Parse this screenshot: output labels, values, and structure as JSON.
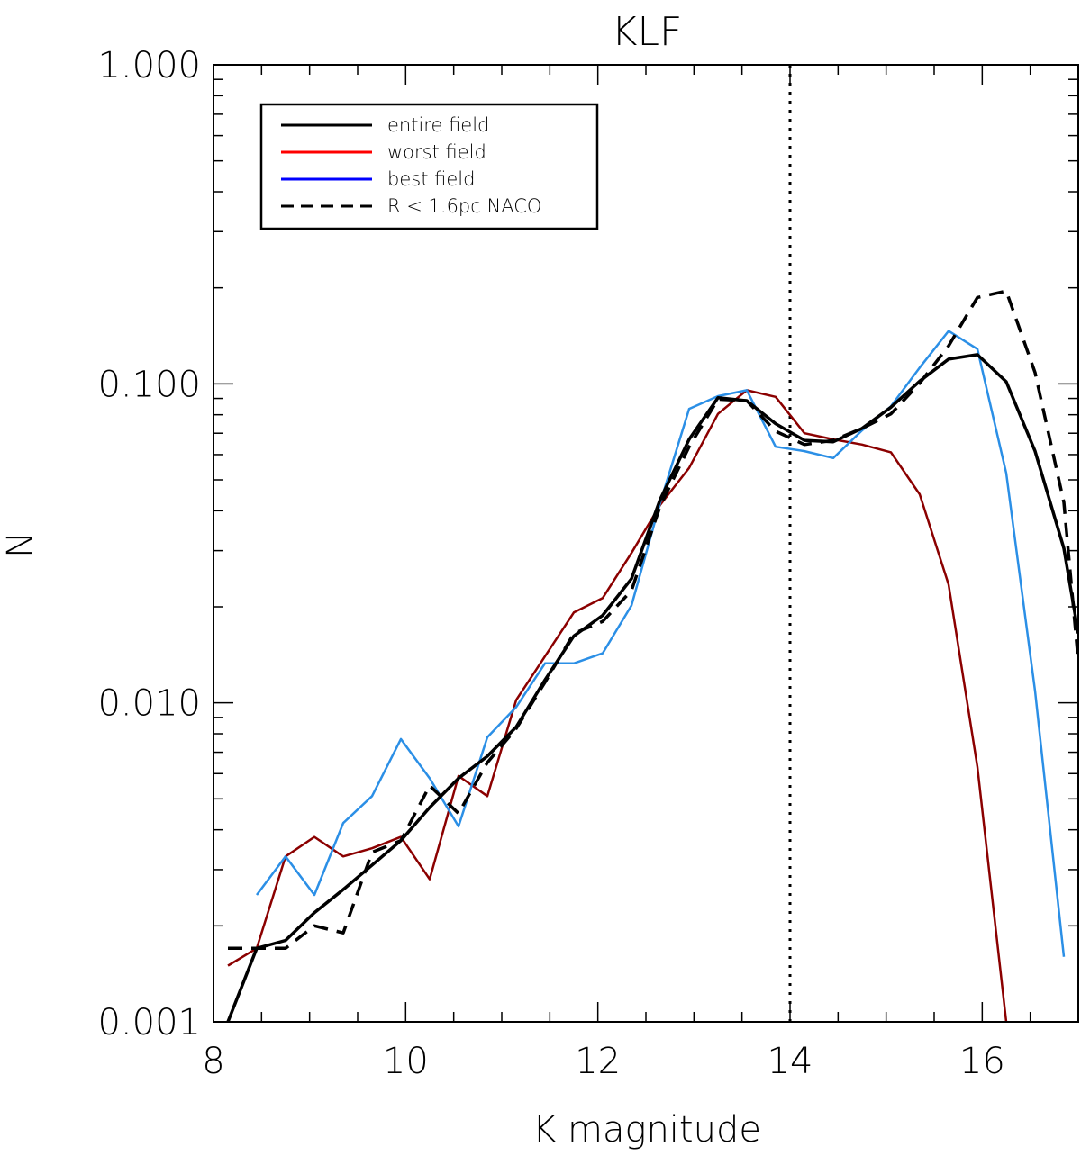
{
  "chart_data": {
    "type": "line",
    "title": "KLF",
    "xlabel": "K magnitude",
    "ylabel": "N",
    "xlim": [
      8,
      17
    ],
    "ylim": [
      0.001,
      1.0
    ],
    "yscale": "log",
    "x_ticks": [
      "8",
      "10",
      "12",
      "14",
      "16"
    ],
    "x_tick_values": [
      8,
      10,
      12,
      14,
      16
    ],
    "y_ticks": [
      "0.001",
      "0.010",
      "0.100",
      "1.000"
    ],
    "y_tick_values": [
      0.001,
      0.01,
      0.1,
      1.0
    ],
    "grid": false,
    "legend_position": "top-left",
    "reference_line": {
      "x": 14,
      "style": "dotted",
      "color": "#000000"
    },
    "series": [
      {
        "name": "entire field",
        "color": "#000000",
        "style": "solid",
        "legend_color": "#000000",
        "x": [
          8.15,
          8.45,
          8.75,
          9.05,
          9.35,
          9.65,
          9.95,
          10.25,
          10.55,
          10.85,
          11.15,
          11.45,
          11.75,
          12.05,
          12.35,
          12.65,
          12.95,
          13.25,
          13.55,
          13.85,
          14.15,
          14.45,
          14.75,
          15.05,
          15.35,
          15.65,
          15.95,
          16.25,
          16.55,
          16.85,
          17.0
        ],
        "y": [
          0.001,
          0.0017,
          0.0018,
          0.0022,
          0.0026,
          0.0031,
          0.0037,
          0.0047,
          0.0058,
          0.0068,
          0.0084,
          0.0118,
          0.0162,
          0.0188,
          0.0245,
          0.0435,
          0.067,
          0.0905,
          0.0885,
          0.075,
          0.0665,
          0.0658,
          0.0725,
          0.0845,
          0.102,
          0.1195,
          0.1235,
          0.1015,
          0.0615,
          0.0305,
          0.0165
        ]
      },
      {
        "name": "worst field",
        "color": "#8b0000",
        "style": "solid",
        "legend_color": "#ff0000",
        "x": [
          8.15,
          8.45,
          8.75,
          9.05,
          9.35,
          9.65,
          9.95,
          10.25,
          10.55,
          10.85,
          11.15,
          11.45,
          11.75,
          12.05,
          12.35,
          12.65,
          12.95,
          13.25,
          13.55,
          13.85,
          14.15,
          14.45,
          14.75,
          15.05,
          15.35,
          15.65,
          15.95,
          16.25
        ],
        "y": [
          0.0015,
          0.0017,
          0.0033,
          0.0038,
          0.0033,
          0.0035,
          0.0038,
          0.0028,
          0.0059,
          0.0051,
          0.0102,
          0.014,
          0.0192,
          0.0213,
          0.0295,
          0.0418,
          0.0545,
          0.0805,
          0.0955,
          0.091,
          0.07,
          0.067,
          0.0645,
          0.061,
          0.045,
          0.0235,
          0.0063,
          0.001
        ]
      },
      {
        "name": "best field",
        "color": "#2b8fe6",
        "style": "solid",
        "legend_color": "#0000ff",
        "x": [
          8.45,
          8.75,
          9.05,
          9.35,
          9.65,
          9.95,
          10.25,
          10.55,
          10.85,
          11.15,
          11.45,
          11.75,
          12.05,
          12.35,
          12.65,
          12.95,
          13.25,
          13.55,
          13.85,
          14.15,
          14.45,
          14.75,
          15.05,
          15.35,
          15.65,
          15.95,
          16.25,
          16.55,
          16.85
        ],
        "y": [
          0.0025,
          0.0033,
          0.0025,
          0.0042,
          0.0051,
          0.0077,
          0.0058,
          0.0041,
          0.0078,
          0.0097,
          0.0133,
          0.0133,
          0.0143,
          0.0202,
          0.0425,
          0.0835,
          0.0915,
          0.0955,
          0.0635,
          0.0615,
          0.0585,
          0.0715,
          0.085,
          0.1125,
          0.1465,
          0.1285,
          0.0525,
          0.0109,
          0.0016
        ]
      },
      {
        "name": "R < 1.6pc NACO",
        "color": "#000000",
        "style": "dashed",
        "legend_color": "#000000",
        "x": [
          8.15,
          8.45,
          8.75,
          9.05,
          9.35,
          9.65,
          9.95,
          10.25,
          10.55,
          10.85,
          11.15,
          11.45,
          11.75,
          12.05,
          12.35,
          12.65,
          12.95,
          13.25,
          13.55,
          13.85,
          14.15,
          14.45,
          14.75,
          15.05,
          15.35,
          15.65,
          15.95,
          16.25,
          16.55,
          16.85,
          17.0
        ],
        "y": [
          0.0017,
          0.0017,
          0.0017,
          0.002,
          0.0019,
          0.0034,
          0.0037,
          0.0055,
          0.0045,
          0.0065,
          0.0083,
          0.0116,
          0.0165,
          0.018,
          0.0225,
          0.0415,
          0.0635,
          0.0895,
          0.0885,
          0.071,
          0.0645,
          0.0665,
          0.0725,
          0.0805,
          0.1005,
          0.1315,
          0.1865,
          0.1955,
          0.1085,
          0.0425,
          0.0135
        ]
      }
    ]
  }
}
